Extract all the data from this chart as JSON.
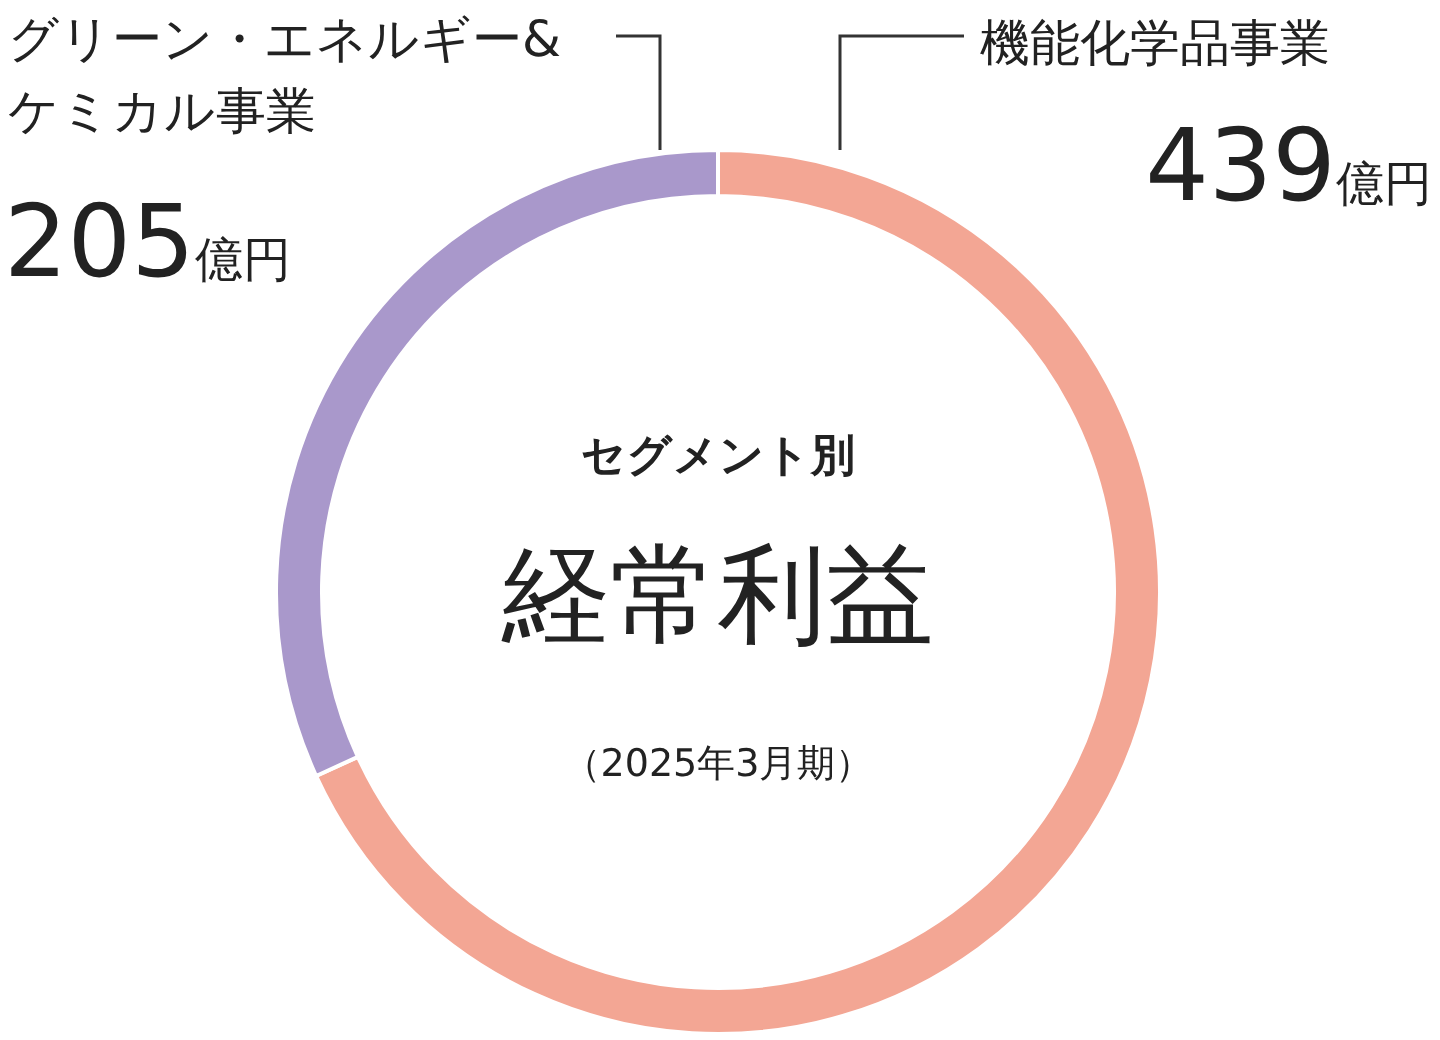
{
  "chart_data": {
    "type": "donut",
    "title": "セグメント別",
    "subtitle": "経常利益",
    "annotations": [
      "（2025年3月期）"
    ],
    "categories": [
      "機能化学品事業",
      "グリーン・エネルギー&ケミカル事業"
    ],
    "values": [
      439,
      205
    ],
    "colors": [
      "#f3a694",
      "#a998cb"
    ],
    "value_labels": [
      "439億円",
      "205億円"
    ]
  }
}
